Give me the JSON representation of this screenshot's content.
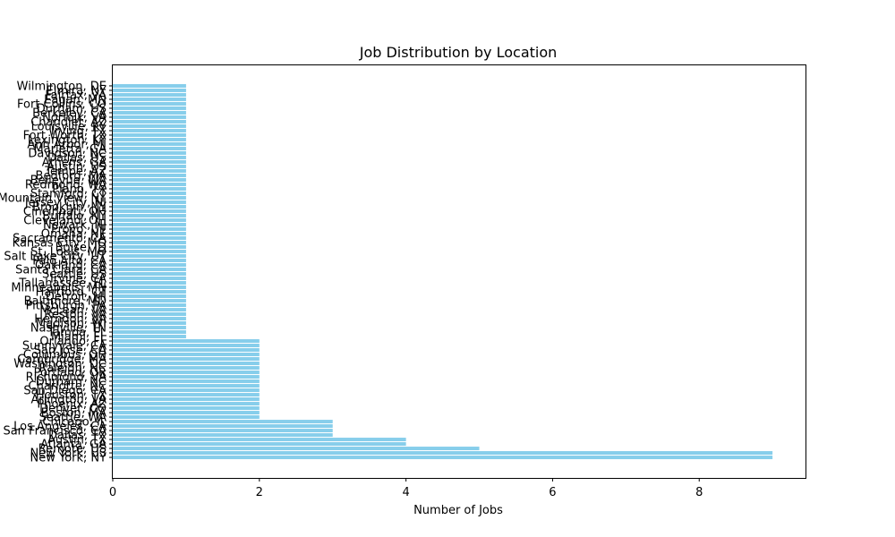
{
  "chart_data": {
    "type": "bar",
    "orientation": "horizontal",
    "title": "Job Distribution by Location",
    "xlabel": "Number of Jobs",
    "ylabel": "",
    "xlim": [
      0,
      9.45
    ],
    "xticks": [
      "0",
      "2",
      "4",
      "6",
      "8"
    ],
    "bar_color": "#87ceeb",
    "grid": false,
    "categories": [
      "New York, NY",
      "New York, US",
      "Remote, US",
      "Atlanta, GA",
      "Austin, TX",
      "Dallas, TX",
      "San Francisco, CA",
      "Los Angeles, CA",
      "Chicago, IL",
      "Seattle, WA",
      "Boston, MA",
      "Denver, CO",
      "Phoenix, AZ",
      "Arlington, VA",
      "Houston, TX",
      "San Diego, CA",
      "Charlotte, NC",
      "Durham, NC",
      "Richmond, VA",
      "Portland, OR",
      "Raleigh, NC",
      "Washington, DC",
      "Cambridge, MA",
      "Columbus, OH",
      "San Jose, CA",
      "Sunnyvale, CA",
      "Orlando, FL",
      "Miami, FL",
      "Tampa, FL",
      "Nashville, TN",
      "Madison, WI",
      "Herndon, VA",
      "Reston, VA",
      "McLean, VA",
      "Pittsburgh, PA",
      "Baltimore, MD",
      "Detroit, MI",
      "Hartford, CT",
      "Minneapolis, MN",
      "Tallahassee, FL",
      "Irvine, CA",
      "Seattle, US",
      "Santa Clara, CA",
      "Oakland, CA",
      "Palo Alto, CA",
      "Salt Lake City, UT",
      "St. Louis, MO",
      "Boise, ID",
      "Kansas City, MO",
      "Sacramento, CA",
      "Omaha, NE",
      "Provo, UT",
      "Newark, NJ",
      "Cleveland, OH",
      "Buffalo, NY",
      "Cincinnati, OH",
      "Brooklyn, NY",
      "Jersey City, NJ",
      "Mountain View, NY",
      "Stamford, CT",
      "Plano, TX",
      "Redmond, WA",
      "Bellevue, WA",
      "Bedford, MA",
      "Tempe, AZ",
      "Austin, US",
      "Athens, GA",
      "Dallas, US",
      "Davidson, NC",
      "Marietta, GA",
      "Ann Arbor, MI",
      "Lexington, KY",
      "Fort Worth, TX",
      "Irving, TX",
      "Louisville, KY",
      "Chandler, AZ",
      "Norfolk, VA",
      "Berkeley, CA",
      "Durham, US",
      "Fort Collins, CO",
      "Eagan, MN",
      "Fairfax, VA",
      "Elmira, NY",
      "Wilmington, DE"
    ],
    "values": [
      9,
      9,
      5,
      4,
      4,
      3,
      3,
      3,
      3,
      2,
      2,
      2,
      2,
      2,
      2,
      2,
      2,
      2,
      2,
      2,
      2,
      2,
      2,
      2,
      2,
      2,
      2,
      1,
      1,
      1,
      1,
      1,
      1,
      1,
      1,
      1,
      1,
      1,
      1,
      1,
      1,
      1,
      1,
      1,
      1,
      1,
      1,
      1,
      1,
      1,
      1,
      1,
      1,
      1,
      1,
      1,
      1,
      1,
      1,
      1,
      1,
      1,
      1,
      1,
      1,
      1,
      1,
      1,
      1,
      1,
      1,
      1,
      1,
      1,
      1,
      1,
      1,
      1,
      1,
      1,
      1,
      1,
      1,
      1
    ]
  }
}
